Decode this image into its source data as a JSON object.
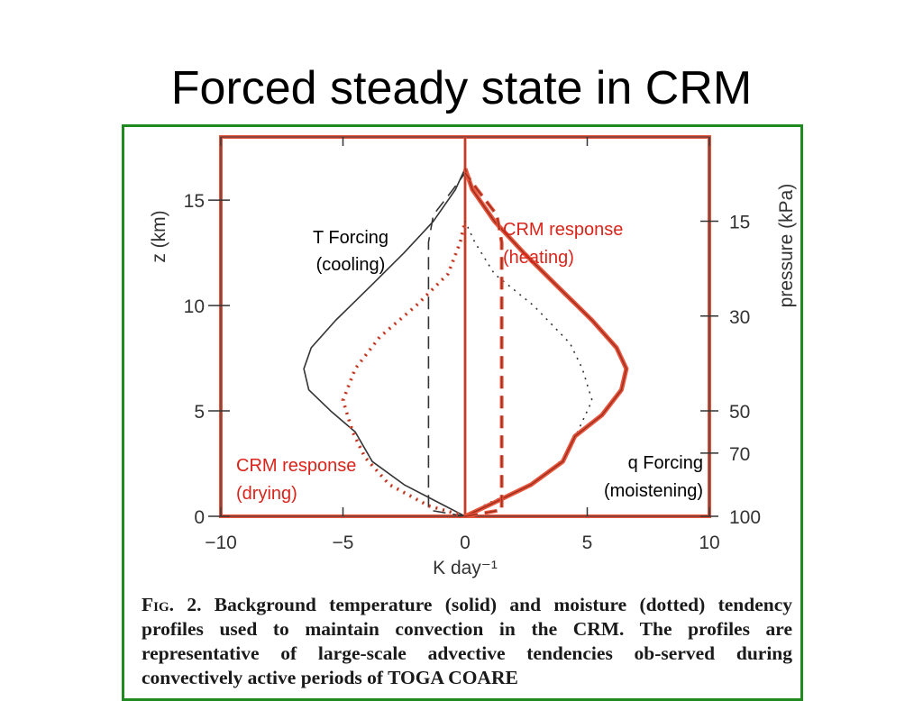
{
  "slide": {
    "title": "Forced steady state in CRM"
  },
  "figure": {
    "caption_label": "Fig. 2.",
    "caption_text": "Background temperature (solid) and moisture (dotted) tendency profiles used to maintain convection in the CRM. The profiles are representative of large-scale advective tendencies ob-served during convectively active periods of TOGA COARE"
  },
  "colors": {
    "frame": "#1f8a1f",
    "highlight": "#e8553c",
    "annotation_red": "#d9241b",
    "axis": "#333333",
    "profile": "#333333"
  },
  "chart_data": {
    "type": "line",
    "xlabel": "K day⁻¹",
    "ylabel": "z (km)",
    "y2label": "pressure (kPa)",
    "xlim": [
      -10,
      10
    ],
    "ylim": [
      0,
      18
    ],
    "xticks": [
      "−10",
      "−5",
      "0",
      "5",
      "10"
    ],
    "xtick_values": [
      -10,
      -5,
      0,
      5,
      10
    ],
    "yticks": [
      "0",
      "5",
      "10",
      "15"
    ],
    "ytick_values": [
      0,
      5,
      10,
      15
    ],
    "y2ticks": [
      "100",
      "70",
      "50",
      "30",
      "15"
    ],
    "y2tick_values": [
      0,
      3,
      5,
      9.5,
      14
    ],
    "annotations": [
      {
        "text": "T Forcing",
        "color": "black"
      },
      {
        "text": "(cooling)",
        "color": "black"
      },
      {
        "text": "CRM response",
        "color": "red"
      },
      {
        "text": "(heating)",
        "color": "red"
      },
      {
        "text": "CRM response",
        "color": "red"
      },
      {
        "text": "(drying)",
        "color": "red"
      },
      {
        "text": "q Forcing",
        "color": "black"
      },
      {
        "text": "(moistening)",
        "color": "black"
      }
    ],
    "series": [
      {
        "style": "solid",
        "x": [
          0,
          -1,
          -2.5,
          -3.8,
          -4.5,
          -5.5,
          -6.4,
          -6.6,
          -6.3,
          -5.3,
          -3.8,
          -2.5,
          -1.3,
          -0.4,
          0
        ],
        "z": [
          0,
          0.6,
          1.5,
          2.6,
          4,
          5,
          6,
          7,
          8,
          9.3,
          11,
          12.5,
          14,
          15.5,
          16.5
        ]
      },
      {
        "style": "dashed",
        "x": [
          0,
          -1.5,
          -1.5,
          -1.5,
          -1.5,
          -1.5,
          -1.5,
          -1.3,
          -0.5,
          0
        ],
        "z": [
          0,
          0.3,
          2,
          5,
          8,
          11,
          13,
          14.3,
          15.5,
          16.3
        ]
      },
      {
        "style": "dotted",
        "x": [
          0,
          0.9,
          2.7,
          4.1,
          4.6,
          5.2,
          4.8,
          4.3,
          2.8,
          1.2,
          0.4,
          0
        ],
        "z": [
          0,
          0.6,
          1.5,
          2.8,
          4,
          5.5,
          7,
          8.2,
          10,
          11.5,
          13,
          14
        ]
      },
      {
        "style": "dotted",
        "x": [
          0,
          -1.5,
          -3.1,
          -4.1,
          -4.6,
          -5,
          -4.5,
          -3.5,
          -2,
          -0.7,
          -0.2,
          0
        ],
        "z": [
          0,
          0.5,
          1.5,
          2.8,
          4,
          5.5,
          7,
          8.5,
          10,
          11.5,
          13,
          14
        ]
      },
      {
        "style": "solid",
        "x": [
          0,
          1.1,
          2.7,
          4,
          4.5,
          5.6,
          6.4,
          6.6,
          6.2,
          5.2,
          3.7,
          2.4,
          1.2,
          0.3,
          0
        ],
        "z": [
          0,
          0.6,
          1.5,
          2.6,
          3.8,
          4.8,
          6,
          7,
          8,
          9.3,
          11,
          12.5,
          14,
          15.5,
          16.5
        ]
      },
      {
        "style": "dashed",
        "x": [
          0,
          1.5,
          1.5,
          1.5,
          1.5,
          1.5,
          1.5,
          1.3,
          0.5,
          0
        ],
        "z": [
          0,
          0.3,
          2,
          5,
          8,
          11,
          13,
          14.3,
          15.5,
          16.3
        ]
      }
    ]
  }
}
